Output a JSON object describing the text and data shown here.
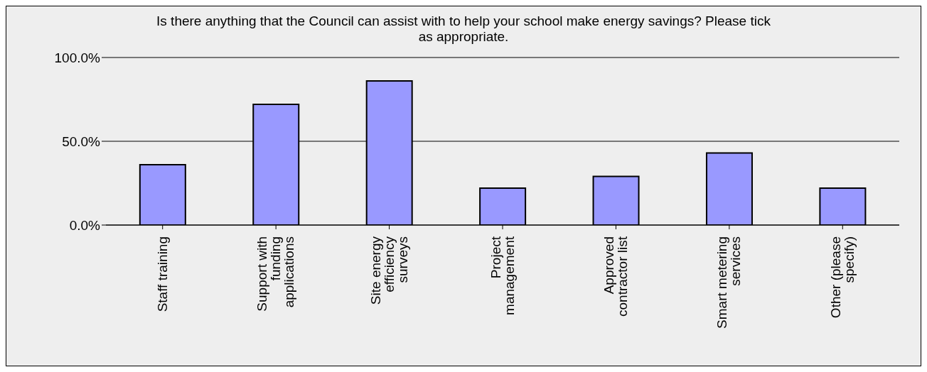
{
  "chart_data": {
    "type": "bar",
    "title": "Is there anything that the Council can assist with to help your school make energy savings? Please tick as appropriate.",
    "categories": [
      "Staff training",
      "Support with funding applications",
      "Site energy efficiency surveys",
      "Project management",
      "Approved contractor list",
      "Smart metering services",
      "Other (please specify)"
    ],
    "values": [
      36,
      72,
      86,
      22,
      29,
      43,
      22
    ],
    "color": "#9999ff",
    "ylim": [
      0,
      100
    ],
    "yticks": [
      {
        "value": 0,
        "label": "0.0%"
      },
      {
        "value": 50,
        "label": "50.0%"
      },
      {
        "value": 100,
        "label": "100.0%"
      }
    ],
    "grid": "y",
    "legend": false
  }
}
